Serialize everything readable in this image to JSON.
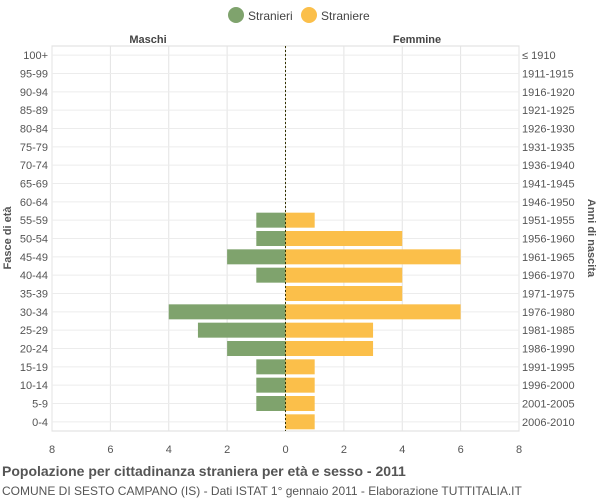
{
  "chart_data": {
    "type": "bar",
    "orientation": "horizontal-pyramid",
    "title": "Popolazione per cittadinanza straniera per età e sesso - 2011",
    "subtitle": "COMUNE DI SESTO CAMPANO (IS) - Dati ISTAT 1° gennaio 2011 - Elaborazione TUTTITALIA.IT",
    "left_header": "Maschi",
    "right_header": "Femmine",
    "ylabel_left": "Fasce di età",
    "ylabel_right": "Anni di nascita",
    "age_groups": [
      "100+",
      "95-99",
      "90-94",
      "85-89",
      "80-84",
      "75-79",
      "70-74",
      "65-69",
      "60-64",
      "55-59",
      "50-54",
      "45-49",
      "40-44",
      "35-39",
      "30-34",
      "25-29",
      "20-24",
      "15-19",
      "10-14",
      "5-9",
      "0-4"
    ],
    "birth_years": [
      "≤ 1910",
      "1911-1915",
      "1916-1920",
      "1921-1925",
      "1926-1930",
      "1931-1935",
      "1936-1940",
      "1941-1945",
      "1946-1950",
      "1951-1955",
      "1956-1960",
      "1961-1965",
      "1966-1970",
      "1971-1975",
      "1976-1980",
      "1981-1985",
      "1986-1990",
      "1991-1995",
      "1996-2000",
      "2001-2005",
      "2006-2010"
    ],
    "series": [
      {
        "name": "Stranieri",
        "side": "left",
        "color": "#7fa36d",
        "values": [
          0,
          0,
          0,
          0,
          0,
          0,
          0,
          0,
          0,
          1,
          1,
          2,
          1,
          0,
          4,
          3,
          2,
          1,
          1,
          1,
          0
        ]
      },
      {
        "name": "Straniere",
        "side": "right",
        "color": "#fbbf4a",
        "values": [
          0,
          0,
          0,
          0,
          0,
          0,
          0,
          0,
          0,
          1,
          4,
          6,
          4,
          4,
          6,
          3,
          3,
          1,
          1,
          1,
          1
        ]
      }
    ],
    "xlim": [
      -8,
      8
    ],
    "xticks": [
      8,
      6,
      4,
      2,
      0,
      2,
      4,
      6,
      8
    ],
    "grid": true,
    "legend_position": "top-center"
  }
}
